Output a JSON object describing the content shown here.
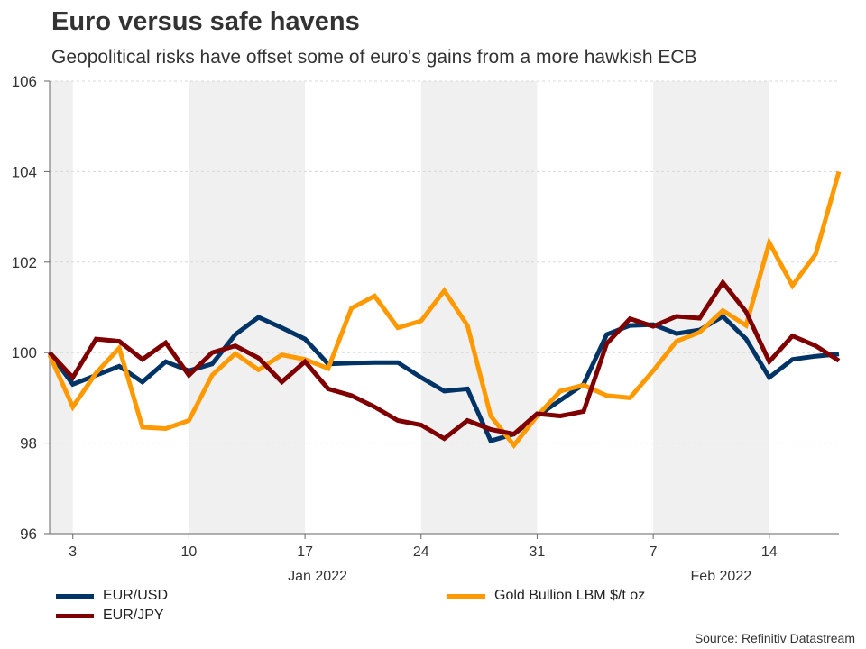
{
  "header": {
    "title": "Euro versus safe havens",
    "subtitle": "Geopolitical risks have offset some of euro's gains from a more hawkish ECB"
  },
  "source": "Source: Refinitiv Datastream",
  "chart_data": {
    "type": "line",
    "title": "Euro versus safe havens",
    "subtitle": "Geopolitical risks have offset some of euro's gains from a more hawkish ECB",
    "xlabel": "",
    "ylabel": "",
    "ylim": [
      96,
      106
    ],
    "yticks": [
      "96",
      "98",
      "100",
      "102",
      "104",
      "106"
    ],
    "xticks": [
      {
        "date": "2022-01-03",
        "label": "3"
      },
      {
        "date": "2022-01-10",
        "label": "10"
      },
      {
        "date": "2022-01-17",
        "label": "17"
      },
      {
        "date": "2022-01-24",
        "label": "24"
      },
      {
        "date": "2022-01-31",
        "label": "31"
      },
      {
        "date": "2022-02-07",
        "label": "7"
      },
      {
        "date": "2022-02-14",
        "label": "14"
      }
    ],
    "month_labels": [
      {
        "date": "2022-01-17",
        "label": "Jan 2022"
      },
      {
        "date": "2022-02-10",
        "label": "Feb 2022"
      }
    ],
    "grid": true,
    "shaded_alternate_weeks": true,
    "legend_position": "bottom",
    "x": [
      "2021-12-31",
      "2022-01-03",
      "2022-01-04",
      "2022-01-05",
      "2022-01-06",
      "2022-01-07",
      "2022-01-10",
      "2022-01-11",
      "2022-01-12",
      "2022-01-13",
      "2022-01-14",
      "2022-01-17",
      "2022-01-18",
      "2022-01-19",
      "2022-01-20",
      "2022-01-21",
      "2022-01-24",
      "2022-01-25",
      "2022-01-26",
      "2022-01-27",
      "2022-01-28",
      "2022-01-31",
      "2022-02-01",
      "2022-02-02",
      "2022-02-03",
      "2022-02-04",
      "2022-02-07",
      "2022-02-08",
      "2022-02-09",
      "2022-02-10",
      "2022-02-11",
      "2022-02-14",
      "2022-02-15",
      "2022-02-16",
      "2022-02-17"
    ],
    "series": [
      {
        "name": "EUR/USD",
        "color": "#003366",
        "values": [
          100,
          99.3,
          99.5,
          99.7,
          99.35,
          99.8,
          99.6,
          99.75,
          100.4,
          100.78,
          100.55,
          100.3,
          99.75,
          99.77,
          99.78,
          99.78,
          99.45,
          99.15,
          99.2,
          98.05,
          98.2,
          98.6,
          98.95,
          99.3,
          100.4,
          100.6,
          100.62,
          100.42,
          100.5,
          100.8,
          100.3,
          99.45,
          99.85,
          99.92,
          99.97
        ]
      },
      {
        "name": "EUR/JPY",
        "color": "#7f0000",
        "values": [
          100,
          99.45,
          100.3,
          100.25,
          99.85,
          100.22,
          99.5,
          100.0,
          100.15,
          99.88,
          99.35,
          99.8,
          99.2,
          99.05,
          98.8,
          98.5,
          98.4,
          98.1,
          98.5,
          98.3,
          98.2,
          98.65,
          98.6,
          98.7,
          100.2,
          100.75,
          100.58,
          100.8,
          100.76,
          101.55,
          100.9,
          99.8,
          100.37,
          100.15,
          99.82
        ]
      },
      {
        "name": "Gold Bullion LBM $/t oz",
        "color": "#ff9900",
        "values": [
          99.95,
          98.8,
          99.55,
          100.1,
          98.35,
          98.32,
          98.5,
          99.5,
          99.98,
          99.62,
          99.95,
          99.85,
          99.65,
          100.98,
          101.25,
          100.55,
          100.7,
          101.37,
          100.6,
          98.6,
          97.95,
          98.6,
          99.15,
          99.28,
          99.05,
          99.0,
          99.6,
          100.25,
          100.45,
          100.93,
          100.6,
          102.43,
          101.48,
          102.18,
          104.0
        ]
      }
    ]
  }
}
